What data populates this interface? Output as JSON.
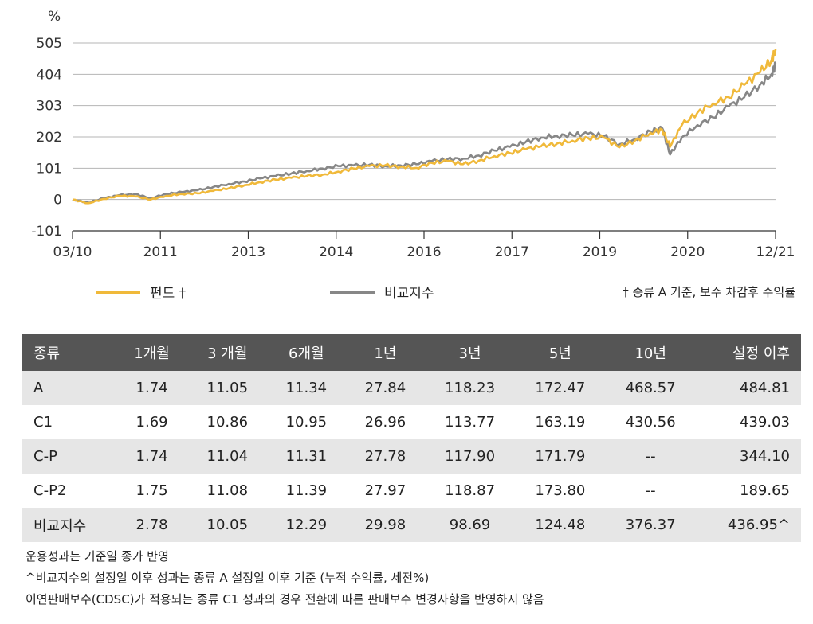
{
  "chart_data": {
    "type": "line",
    "ylabel": "%",
    "ylim": [
      -101,
      505
    ],
    "y_ticks": [
      "505",
      "404",
      "303",
      "202",
      "101",
      "0",
      "-101"
    ],
    "x_ticks": [
      "03/10",
      "2011",
      "2013",
      "2014",
      "2016",
      "2017",
      "2019",
      "2020",
      "12/21"
    ],
    "grid": "horizontal",
    "x": [
      0,
      0.2,
      0.4,
      0.6,
      0.8,
      1.0,
      1.2,
      1.4,
      1.6,
      1.8,
      2.0,
      2.2,
      2.4,
      2.6,
      2.8,
      3.0,
      3.2,
      3.4,
      3.6,
      3.8,
      4.0,
      4.2,
      4.4,
      4.6,
      4.8,
      5.0,
      5.2,
      5.4,
      5.6,
      5.8,
      6.0,
      6.2,
      6.4,
      6.6,
      6.8,
      7.0,
      7.2,
      7.4,
      7.55,
      7.65,
      7.8,
      8.0,
      8.2,
      8.4,
      8.6,
      8.8,
      8.95,
      9.0
    ],
    "series": [
      {
        "name": "펀드 †",
        "color": "#f0b93a",
        "values": [
          0,
          -12,
          2,
          12,
          10,
          0,
          12,
          18,
          20,
          28,
          36,
          46,
          56,
          64,
          70,
          76,
          80,
          90,
          100,
          108,
          110,
          106,
          102,
          118,
          124,
          114,
          125,
          140,
          150,
          162,
          172,
          180,
          190,
          198,
          200,
          168,
          190,
          215,
          225,
          170,
          240,
          280,
          310,
          330,
          370,
          410,
          450,
          485
        ]
      },
      {
        "name": "비교지수",
        "color": "#878787",
        "values": [
          0,
          -10,
          4,
          14,
          18,
          4,
          18,
          24,
          30,
          40,
          50,
          58,
          68,
          76,
          84,
          92,
          100,
          108,
          110,
          112,
          108,
          110,
          114,
          124,
          130,
          132,
          142,
          158,
          170,
          185,
          200,
          205,
          208,
          212,
          205,
          178,
          195,
          220,
          230,
          145,
          200,
          240,
          265,
          300,
          330,
          370,
          405,
          437
        ]
      }
    ]
  },
  "legend": {
    "fund_label": "펀드 †",
    "index_label": "비교지수",
    "note": "† 종류 A 기준, 보수 차감후 수익률"
  },
  "colors": {
    "fund": "#f0b93a",
    "index": "#878787",
    "header_bg": "#555555",
    "row_alt": "#e6e6e6"
  },
  "table": {
    "headers": [
      "종류",
      "1개월",
      "3 개월",
      "6개월",
      "1년",
      "3년",
      "5년",
      "10년",
      "설정 이후"
    ],
    "rows": [
      [
        "A",
        "1.74",
        "11.05",
        "11.34",
        "27.84",
        "118.23",
        "172.47",
        "468.57",
        "484.81"
      ],
      [
        "C1",
        "1.69",
        "10.86",
        "10.95",
        "26.96",
        "113.77",
        "163.19",
        "430.56",
        "439.03"
      ],
      [
        "C-P",
        "1.74",
        "11.04",
        "11.31",
        "27.78",
        "117.90",
        "171.79",
        "--",
        "344.10"
      ],
      [
        "C-P2",
        "1.75",
        "11.08",
        "11.39",
        "27.97",
        "118.87",
        "173.80",
        "--",
        "189.65"
      ],
      [
        "비교지수",
        "2.78",
        "10.05",
        "12.29",
        "29.98",
        "98.69",
        "124.48",
        "376.37",
        "436.95^"
      ]
    ]
  },
  "notes": [
    "운용성과는 기준일 종가 반영",
    "^비교지수의 설정일 이후 성과는 종류 A 설정일 이후 기준 (누적 수익률, 세전%)",
    "이연판매보수(CDSC)가 적용되는 종류 C1 성과의 경우 전환에 따른 판매보수 변경사항을 반영하지 않음"
  ]
}
